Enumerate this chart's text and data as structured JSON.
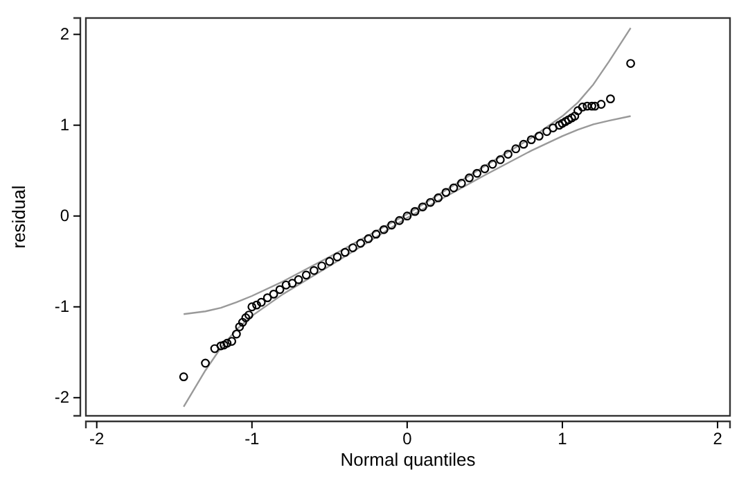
{
  "chart_data": {
    "type": "scatter",
    "xlabel": "Normal quantiles",
    "ylabel": "residual",
    "xlim": [
      -2.07,
      2.08
    ],
    "ylim": [
      -2.2,
      2.18
    ],
    "xticks": [
      -2,
      -1,
      0,
      1,
      2
    ],
    "yticks": [
      -2,
      -1,
      0,
      1,
      2
    ],
    "grid": false,
    "series": [
      {
        "marker": "circle",
        "color": "#000000",
        "x": [
          -1.44,
          -1.3,
          -1.24,
          -1.2,
          -1.18,
          -1.16,
          -1.13,
          -1.1,
          -1.08,
          -1.06,
          -1.04,
          -1.02,
          -1.0,
          -0.97,
          -0.94,
          -0.9,
          -0.86,
          -0.82,
          -0.78,
          -0.74,
          -0.7,
          -0.65,
          -0.6,
          -0.55,
          -0.5,
          -0.45,
          -0.4,
          -0.35,
          -0.3,
          -0.25,
          -0.2,
          -0.15,
          -0.1,
          -0.05,
          0,
          0.05,
          0.1,
          0.15,
          0.2,
          0.25,
          0.3,
          0.35,
          0.4,
          0.45,
          0.5,
          0.55,
          0.6,
          0.65,
          0.7,
          0.75,
          0.8,
          0.85,
          0.9,
          0.94,
          0.98,
          1.0,
          1.02,
          1.04,
          1.06,
          1.08,
          1.1,
          1.13,
          1.16,
          1.19,
          1.21,
          1.25,
          1.31,
          1.44
        ],
        "values": [
          -1.77,
          -1.62,
          -1.46,
          -1.43,
          -1.42,
          -1.4,
          -1.38,
          -1.3,
          -1.22,
          -1.17,
          -1.12,
          -1.09,
          -1.0,
          -0.98,
          -0.95,
          -0.9,
          -0.86,
          -0.81,
          -0.76,
          -0.74,
          -0.7,
          -0.65,
          -0.6,
          -0.55,
          -0.5,
          -0.45,
          -0.4,
          -0.35,
          -0.3,
          -0.25,
          -0.2,
          -0.15,
          -0.1,
          -0.05,
          0,
          0.05,
          0.1,
          0.15,
          0.2,
          0.26,
          0.31,
          0.36,
          0.42,
          0.47,
          0.52,
          0.57,
          0.62,
          0.68,
          0.74,
          0.79,
          0.84,
          0.88,
          0.93,
          0.97,
          1.0,
          1.02,
          1.04,
          1.06,
          1.08,
          1.1,
          1.16,
          1.2,
          1.21,
          1.21,
          1.21,
          1.23,
          1.29,
          1.68
        ]
      },
      {
        "type": "line",
        "marker": "none",
        "line_style": "solid",
        "color": "#999999",
        "x": [
          -1.44,
          -1.3,
          -1.2,
          -1.1,
          -1.0,
          -0.8,
          -0.5,
          0,
          0.5,
          0.8,
          0.9,
          1.0,
          1.1,
          1.2,
          1.3,
          1.44
        ],
        "values": [
          -1.08,
          -1.05,
          -1.01,
          -0.95,
          -0.88,
          -0.72,
          -0.45,
          0.02,
          0.55,
          0.86,
          0.98,
          1.1,
          1.25,
          1.45,
          1.7,
          2.07
        ]
      },
      {
        "type": "line",
        "marker": "none",
        "line_style": "solid",
        "color": "#999999",
        "x": [
          -1.44,
          -1.3,
          -1.2,
          -1.1,
          -1.0,
          -0.9,
          -0.8,
          -0.5,
          0,
          0.5,
          0.8,
          1.0,
          1.1,
          1.2,
          1.3,
          1.44
        ],
        "values": [
          -2.1,
          -1.7,
          -1.45,
          -1.25,
          -1.1,
          -0.98,
          -0.86,
          -0.55,
          -0.02,
          0.45,
          0.72,
          0.88,
          0.95,
          1.01,
          1.05,
          1.1
        ]
      }
    ]
  }
}
